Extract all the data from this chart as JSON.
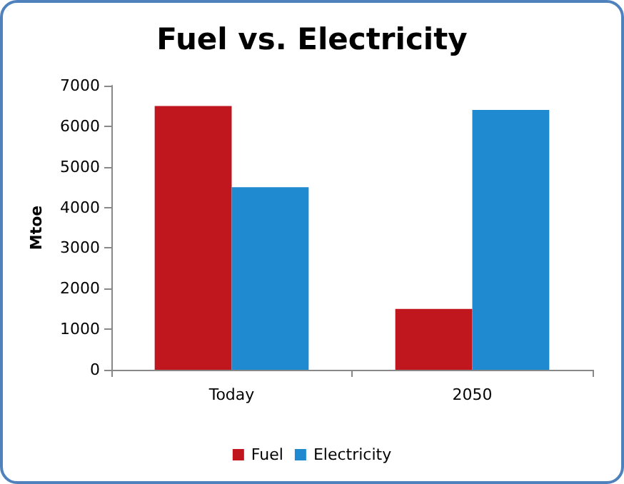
{
  "chart_data": {
    "type": "bar",
    "title": "Fuel vs. Electricity",
    "ylabel": "Mtoe",
    "categories": [
      "Today",
      "2050"
    ],
    "series": [
      {
        "name": "Fuel",
        "color": "#c0171f",
        "values": [
          6500,
          1500
        ]
      },
      {
        "name": "Electricity",
        "color": "#1f8ad0",
        "values": [
          4500,
          6400
        ]
      }
    ],
    "ylim": [
      0,
      7000
    ],
    "yticks": [
      0,
      1000,
      2000,
      3000,
      4000,
      5000,
      6000,
      7000
    ],
    "grid": false,
    "legend": "bottom"
  }
}
